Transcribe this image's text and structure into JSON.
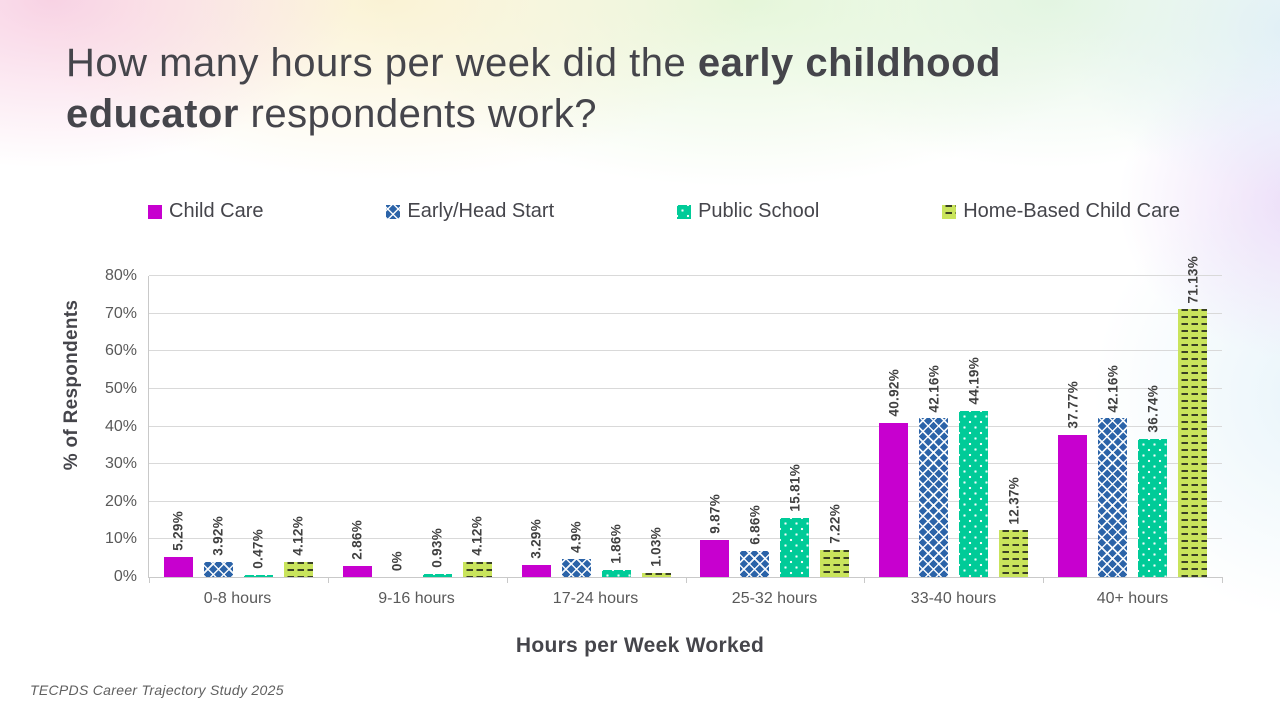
{
  "slide": {
    "title_prefix": "How many hours per week did the ",
    "title_bold": "early childhood educator",
    "title_suffix": " respondents work?",
    "footer": "TECPDS Career Trajectory Study 2025"
  },
  "colors": {
    "title_text": "#45454b",
    "axis_text": "#595959",
    "data_label_text": "#404040",
    "gridline": "#d9d9d9"
  },
  "chart_data": {
    "type": "bar",
    "title": "",
    "xlabel": "Hours per Week Worked",
    "ylabel": "% of Respondents",
    "ylim": [
      0,
      80
    ],
    "ytick_labels": [
      "0%",
      "10%",
      "20%",
      "30%",
      "40%",
      "50%",
      "60%",
      "70%",
      "80%"
    ],
    "grid": true,
    "legend_position": "top",
    "categories": [
      "0-8 hours",
      "9-16 hours",
      "17-24 hours",
      "25-32 hours",
      "33-40 hours",
      "40+ hours"
    ],
    "series": [
      {
        "name": "Child Care",
        "color": "#c700cf",
        "pattern": "solid",
        "values": [
          5.29,
          2.86,
          3.29,
          9.87,
          40.92,
          37.77
        ],
        "labels": [
          "5.29%",
          "2.86%",
          "3.29%",
          "9.87%",
          "40.92%",
          "37.77%"
        ]
      },
      {
        "name": "Early/Head Start",
        "color": "#2b63a8",
        "pattern": "crosshatch",
        "values": [
          3.92,
          0,
          4.9,
          6.86,
          42.16,
          42.16
        ],
        "labels": [
          "3.92%",
          "0%",
          "4.9%",
          "6.86%",
          "42.16%",
          "42.16%"
        ]
      },
      {
        "name": "Public School",
        "color": "#00cb98",
        "pattern": "dots",
        "values": [
          0.47,
          0.93,
          1.86,
          15.81,
          44.19,
          36.74
        ],
        "labels": [
          "0.47%",
          "0.93%",
          "1.86%",
          "15.81%",
          "44.19%",
          "36.74%"
        ]
      },
      {
        "name": "Home-Based Child Care",
        "color": "#c9e45c",
        "pattern": "dashes",
        "values": [
          4.12,
          4.12,
          1.03,
          7.22,
          12.37,
          71.13
        ],
        "labels": [
          "4.12%",
          "4.12%",
          "1.03%",
          "7.22%",
          "12.37%",
          "71.13%"
        ]
      }
    ]
  }
}
